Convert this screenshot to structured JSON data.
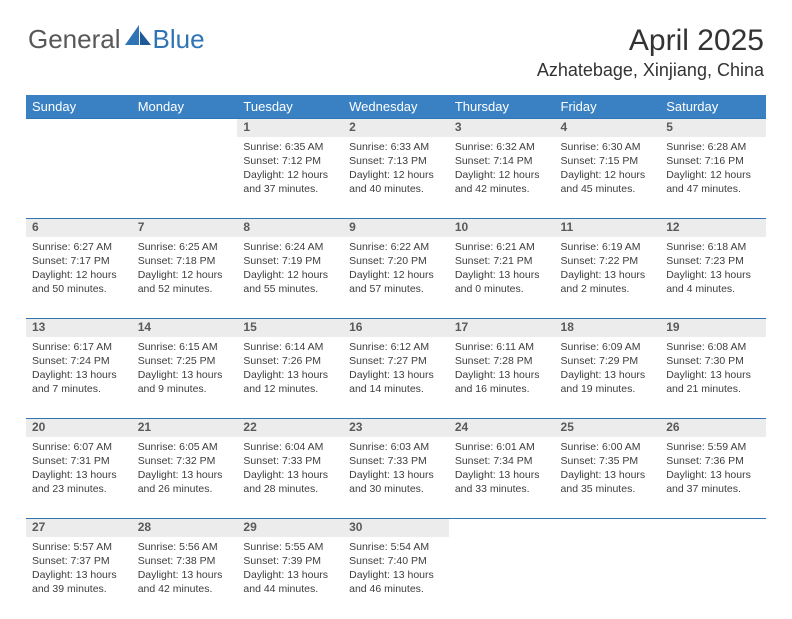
{
  "logo": {
    "general": "General",
    "blue": "Blue"
  },
  "title": "April 2025",
  "location": "Azhatebage, Xinjiang, China",
  "colors": {
    "header_bg": "#3a81c3",
    "rule": "#2f74b5",
    "daynum_bg": "#ececec",
    "text": "#333333"
  },
  "weekdays": [
    "Sunday",
    "Monday",
    "Tuesday",
    "Wednesday",
    "Thursday",
    "Friday",
    "Saturday"
  ],
  "weeks": [
    {
      "nums": [
        "",
        "",
        "1",
        "2",
        "3",
        "4",
        "5"
      ],
      "cells": [
        null,
        null,
        {
          "sr": "6:35 AM",
          "ss": "7:12 PM",
          "d1": "12 hours",
          "d2": "and 37 minutes."
        },
        {
          "sr": "6:33 AM",
          "ss": "7:13 PM",
          "d1": "12 hours",
          "d2": "and 40 minutes."
        },
        {
          "sr": "6:32 AM",
          "ss": "7:14 PM",
          "d1": "12 hours",
          "d2": "and 42 minutes."
        },
        {
          "sr": "6:30 AM",
          "ss": "7:15 PM",
          "d1": "12 hours",
          "d2": "and 45 minutes."
        },
        {
          "sr": "6:28 AM",
          "ss": "7:16 PM",
          "d1": "12 hours",
          "d2": "and 47 minutes."
        }
      ]
    },
    {
      "nums": [
        "6",
        "7",
        "8",
        "9",
        "10",
        "11",
        "12"
      ],
      "cells": [
        {
          "sr": "6:27 AM",
          "ss": "7:17 PM",
          "d1": "12 hours",
          "d2": "and 50 minutes."
        },
        {
          "sr": "6:25 AM",
          "ss": "7:18 PM",
          "d1": "12 hours",
          "d2": "and 52 minutes."
        },
        {
          "sr": "6:24 AM",
          "ss": "7:19 PM",
          "d1": "12 hours",
          "d2": "and 55 minutes."
        },
        {
          "sr": "6:22 AM",
          "ss": "7:20 PM",
          "d1": "12 hours",
          "d2": "and 57 minutes."
        },
        {
          "sr": "6:21 AM",
          "ss": "7:21 PM",
          "d1": "13 hours",
          "d2": "and 0 minutes."
        },
        {
          "sr": "6:19 AM",
          "ss": "7:22 PM",
          "d1": "13 hours",
          "d2": "and 2 minutes."
        },
        {
          "sr": "6:18 AM",
          "ss": "7:23 PM",
          "d1": "13 hours",
          "d2": "and 4 minutes."
        }
      ]
    },
    {
      "nums": [
        "13",
        "14",
        "15",
        "16",
        "17",
        "18",
        "19"
      ],
      "cells": [
        {
          "sr": "6:17 AM",
          "ss": "7:24 PM",
          "d1": "13 hours",
          "d2": "and 7 minutes."
        },
        {
          "sr": "6:15 AM",
          "ss": "7:25 PM",
          "d1": "13 hours",
          "d2": "and 9 minutes."
        },
        {
          "sr": "6:14 AM",
          "ss": "7:26 PM",
          "d1": "13 hours",
          "d2": "and 12 minutes."
        },
        {
          "sr": "6:12 AM",
          "ss": "7:27 PM",
          "d1": "13 hours",
          "d2": "and 14 minutes."
        },
        {
          "sr": "6:11 AM",
          "ss": "7:28 PM",
          "d1": "13 hours",
          "d2": "and 16 minutes."
        },
        {
          "sr": "6:09 AM",
          "ss": "7:29 PM",
          "d1": "13 hours",
          "d2": "and 19 minutes."
        },
        {
          "sr": "6:08 AM",
          "ss": "7:30 PM",
          "d1": "13 hours",
          "d2": "and 21 minutes."
        }
      ]
    },
    {
      "nums": [
        "20",
        "21",
        "22",
        "23",
        "24",
        "25",
        "26"
      ],
      "cells": [
        {
          "sr": "6:07 AM",
          "ss": "7:31 PM",
          "d1": "13 hours",
          "d2": "and 23 minutes."
        },
        {
          "sr": "6:05 AM",
          "ss": "7:32 PM",
          "d1": "13 hours",
          "d2": "and 26 minutes."
        },
        {
          "sr": "6:04 AM",
          "ss": "7:33 PM",
          "d1": "13 hours",
          "d2": "and 28 minutes."
        },
        {
          "sr": "6:03 AM",
          "ss": "7:33 PM",
          "d1": "13 hours",
          "d2": "and 30 minutes."
        },
        {
          "sr": "6:01 AM",
          "ss": "7:34 PM",
          "d1": "13 hours",
          "d2": "and 33 minutes."
        },
        {
          "sr": "6:00 AM",
          "ss": "7:35 PM",
          "d1": "13 hours",
          "d2": "and 35 minutes."
        },
        {
          "sr": "5:59 AM",
          "ss": "7:36 PM",
          "d1": "13 hours",
          "d2": "and 37 minutes."
        }
      ]
    },
    {
      "nums": [
        "27",
        "28",
        "29",
        "30",
        "",
        "",
        ""
      ],
      "cells": [
        {
          "sr": "5:57 AM",
          "ss": "7:37 PM",
          "d1": "13 hours",
          "d2": "and 39 minutes."
        },
        {
          "sr": "5:56 AM",
          "ss": "7:38 PM",
          "d1": "13 hours",
          "d2": "and 42 minutes."
        },
        {
          "sr": "5:55 AM",
          "ss": "7:39 PM",
          "d1": "13 hours",
          "d2": "and 44 minutes."
        },
        {
          "sr": "5:54 AM",
          "ss": "7:40 PM",
          "d1": "13 hours",
          "d2": "and 46 minutes."
        },
        null,
        null,
        null
      ]
    }
  ],
  "labels": {
    "sunrise": "Sunrise:",
    "sunset": "Sunset:",
    "daylight": "Daylight:"
  }
}
